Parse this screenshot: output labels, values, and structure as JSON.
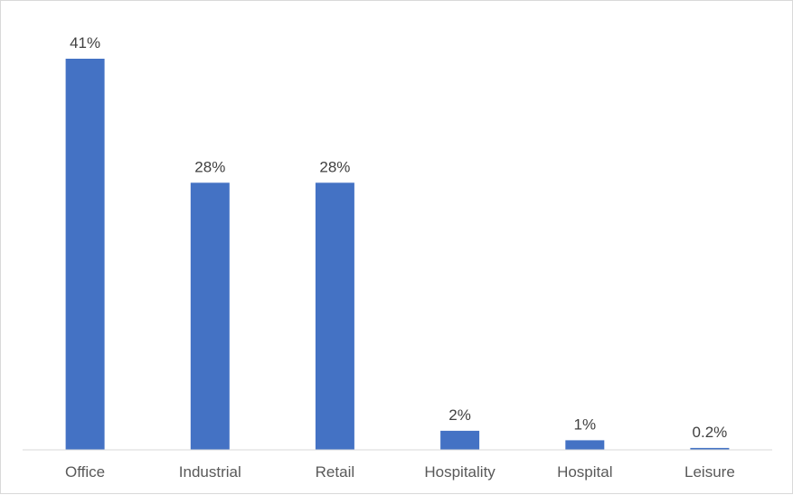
{
  "chart_data": {
    "type": "bar",
    "categories": [
      "Office",
      "Industrial",
      "Retail",
      "Hospitality",
      "Hospital",
      "Leisure"
    ],
    "values": [
      41,
      28,
      28,
      2,
      1,
      0.2
    ],
    "data_labels": [
      "41%",
      "28%",
      "28%",
      "2%",
      "1%",
      "0.2%"
    ],
    "unit": "%",
    "ylim": [
      0,
      41
    ],
    "grid": false,
    "legend": "none",
    "colors": {
      "bar": "#4472c4",
      "axis": "#d9d9d9"
    }
  }
}
